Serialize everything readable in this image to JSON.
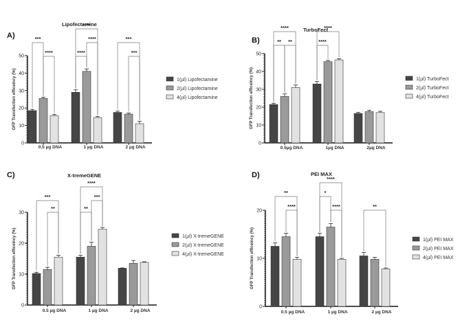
{
  "chart_data": [
    {
      "type": "bar",
      "panel": "A)",
      "title": "Lipofectamine",
      "ylabel": "GFP Transfection efficeincy (%)",
      "xlabel": "",
      "ylim": [
        0,
        50
      ],
      "yticks": [
        0,
        10,
        20,
        30,
        40,
        50
      ],
      "categories": [
        "0.5  µg DNA",
        "1 µg DNA",
        "2  µg DNA"
      ],
      "series": [
        {
          "name": "1(µl) Lipofectamine",
          "color": "#454545",
          "values": [
            18.5,
            29,
            17.5
          ],
          "errors": [
            0.7,
            1.4,
            0.7
          ]
        },
        {
          "name": "2(µl) Lipofectamine",
          "color": "#9a9a9a",
          "values": [
            25.5,
            41,
            16.5
          ],
          "errors": [
            0.7,
            1.4,
            0.6
          ]
        },
        {
          "name": "4(µl) Lipofectamine",
          "color": "#e2e2e2",
          "values": [
            15.5,
            14.5,
            11
          ],
          "errors": [
            0.9,
            0.7,
            1.4
          ]
        }
      ],
      "significance": [
        {
          "group": 0,
          "from": 0,
          "to": 1,
          "label": "***",
          "level": 1
        },
        {
          "group": 0,
          "from": 1,
          "to": 2,
          "label": "****",
          "level": 0
        },
        {
          "group": 1,
          "from": 0,
          "to": 2,
          "label": "****",
          "level": 2
        },
        {
          "group": 1,
          "from": 1,
          "to": 2,
          "label": "****",
          "level": 1
        },
        {
          "group": 1,
          "from": 0,
          "to": 1,
          "label": "****",
          "level": 0
        },
        {
          "group": 2,
          "from": 0,
          "to": 2,
          "label": "***",
          "level": 1
        },
        {
          "group": 2,
          "from": 1,
          "to": 2,
          "label": "***",
          "level": 0
        }
      ],
      "legend": "right"
    },
    {
      "type": "bar",
      "panel": "B)",
      "title": "TurboFect",
      "ylabel": "GFP Transfection efficeincy (%)",
      "xlabel": "",
      "ylim": [
        0,
        50
      ],
      "yticks": [
        0,
        10,
        20,
        30,
        40,
        50
      ],
      "categories": [
        "0.5µg DNA",
        "1µg DNA",
        "2µg DNA"
      ],
      "series": [
        {
          "name": "1(µl) TurboFect",
          "color": "#454545",
          "values": [
            21.5,
            33,
            16.5
          ],
          "errors": [
            0.7,
            1.4,
            0.6
          ]
        },
        {
          "name": "2(µl) TurboFect",
          "color": "#9a9a9a",
          "values": [
            26,
            45.5,
            17.5
          ],
          "errors": [
            1.4,
            0.7,
            0.8
          ]
        },
        {
          "name": "4(µl) TurboFect",
          "color": "#e2e2e2",
          "values": [
            31,
            46.5,
            17
          ],
          "errors": [
            1.4,
            0.6,
            0.7
          ]
        }
      ],
      "significance": [
        {
          "group": 0,
          "from": 0,
          "to": 2,
          "label": "****",
          "level": 1
        },
        {
          "group": 0,
          "from": 0,
          "to": 1,
          "label": "**",
          "level": 0
        },
        {
          "group": 0,
          "from": 1,
          "to": 2,
          "label": "**",
          "level": 0
        },
        {
          "group": 1,
          "from": 0,
          "to": 2,
          "label": "****",
          "level": 1
        },
        {
          "group": 1,
          "from": 0,
          "to": 1,
          "label": "****",
          "level": 0
        }
      ],
      "legend": "right"
    },
    {
      "type": "bar",
      "panel": "C)",
      "title": "X-tremeGENE",
      "ylabel": "GFP Transfection efficeincy (%)",
      "xlabel": "",
      "ylim": [
        0,
        30
      ],
      "yticks": [
        0,
        10,
        20,
        30
      ],
      "categories": [
        "0.5  µg DNA",
        "1 µg DNA",
        "2 µg DNA"
      ],
      "series": [
        {
          "name": "1(µl) X-tremeGENE",
          "color": "#454545",
          "values": [
            10.2,
            15.5,
            11.9
          ],
          "errors": [
            0.4,
            0.6,
            0.1
          ]
        },
        {
          "name": "2(µl) X-tremeGENE",
          "color": "#9a9a9a",
          "values": [
            11.5,
            19,
            13.5
          ],
          "errors": [
            0.7,
            1.3,
            0.9
          ]
        },
        {
          "name": "4(µl) X-tremeGENE",
          "color": "#e2e2e2",
          "values": [
            15.5,
            24.5,
            13.8
          ],
          "errors": [
            0.6,
            0.6,
            0.2
          ]
        }
      ],
      "significance": [
        {
          "group": 0,
          "from": 0,
          "to": 2,
          "label": "***",
          "level": 1
        },
        {
          "group": 0,
          "from": 1,
          "to": 2,
          "label": "**",
          "level": 0
        },
        {
          "group": 1,
          "from": 0,
          "to": 2,
          "label": "****",
          "level": 2
        },
        {
          "group": 1,
          "from": 1,
          "to": 2,
          "label": "***",
          "level": 1
        },
        {
          "group": 1,
          "from": 0,
          "to": 1,
          "label": "**",
          "level": 0
        }
      ],
      "legend": "right"
    },
    {
      "type": "bar",
      "panel": "D)",
      "title": "PEI MAX",
      "ylabel": "GFP Transfection efficeincy (%)",
      "xlabel": "",
      "ylim": [
        0,
        20
      ],
      "yticks": [
        0,
        10,
        20
      ],
      "categories": [
        "0.5 µg DNA",
        "1 µg DNA",
        "2 µg DNA"
      ],
      "series": [
        {
          "name": "1(µl) PEI MAX",
          "color": "#454545",
          "values": [
            12.5,
            14.5,
            10.5
          ],
          "errors": [
            0.7,
            0.7,
            0.7
          ]
        },
        {
          "name": "2(µl) PEI MAX",
          "color": "#9a9a9a",
          "values": [
            14.5,
            16.5,
            9.8
          ],
          "errors": [
            0.7,
            0.7,
            0.4
          ]
        },
        {
          "name": "4(µl) PEI MAX",
          "color": "#e2e2e2",
          "values": [
            9.8,
            9.8,
            7.8
          ],
          "errors": [
            0.4,
            0.2,
            0.2
          ]
        }
      ],
      "significance": [
        {
          "group": 0,
          "from": 0,
          "to": 2,
          "label": "**",
          "level": 1
        },
        {
          "group": 0,
          "from": 1,
          "to": 2,
          "label": "****",
          "level": 0
        },
        {
          "group": 1,
          "from": 0,
          "to": 2,
          "label": "****",
          "level": 2
        },
        {
          "group": 1,
          "from": 0,
          "to": 1,
          "label": "*",
          "level": 1
        },
        {
          "group": 1,
          "from": 1,
          "to": 2,
          "label": "****",
          "level": 0
        },
        {
          "group": 2,
          "from": 0,
          "to": 2,
          "label": "**",
          "level": 0
        }
      ],
      "legend": "right"
    }
  ]
}
